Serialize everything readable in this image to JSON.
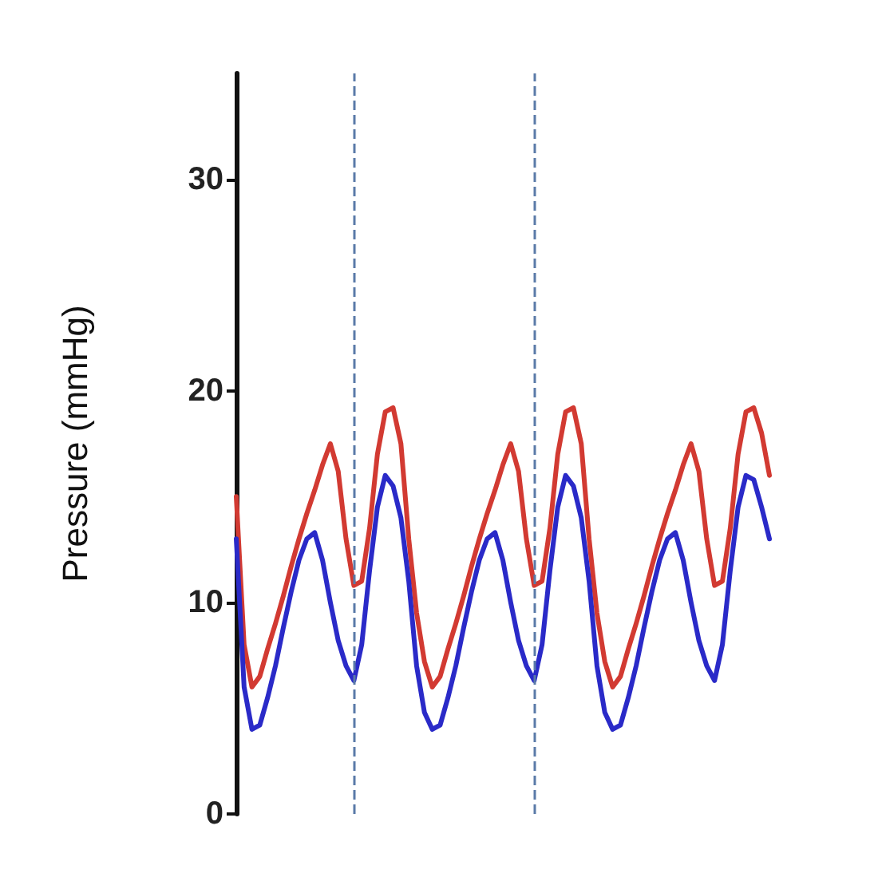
{
  "chart_data": {
    "type": "line",
    "ylabel": "Pressure (mmHg)",
    "categories": [
      null,
      null,
      null,
      null,
      null,
      null,
      null,
      null,
      null,
      null,
      null,
      null,
      null,
      null,
      null,
      null,
      null,
      null,
      null,
      null,
      null,
      null,
      null,
      null,
      null,
      null,
      null,
      null,
      null,
      null,
      null,
      null,
      null,
      null,
      null,
      null,
      null,
      null,
      null,
      null,
      null,
      null,
      null,
      null,
      null,
      null,
      null,
      null,
      null,
      null,
      null,
      null,
      null,
      null,
      null,
      null,
      null,
      null,
      null,
      null,
      null,
      null,
      null,
      null,
      null,
      null,
      null,
      null,
      null
    ],
    "ylim": [
      0,
      35
    ],
    "yticks": [
      0,
      10,
      20,
      30
    ],
    "tick_labels": "y",
    "line_style": "solid",
    "series": [
      {
        "color": "#d23a32",
        "values": [
          15,
          8,
          6,
          6.5,
          7.8,
          9,
          10.3,
          11.7,
          13,
          14.2,
          15.3,
          16.5,
          17.5,
          16.2,
          13,
          10.8,
          11,
          13.5,
          17,
          19,
          19.2,
          17.5,
          13,
          9.5,
          7.2,
          6,
          6.5,
          7.8,
          9,
          10.3,
          11.7,
          13,
          14.2,
          15.3,
          16.5,
          17.5,
          16.2,
          13,
          10.8,
          11,
          13.5,
          17,
          19,
          19.2,
          17.5,
          13,
          9.5,
          7.2,
          6,
          6.5,
          7.8,
          9,
          10.3,
          11.7,
          13,
          14.2,
          15.3,
          16.5,
          17.5,
          16.2,
          13,
          10.8,
          11,
          13.5,
          17,
          19,
          19.2,
          18,
          16
        ]
      },
      {
        "color": "#2a2ac8",
        "values": [
          13,
          6,
          4,
          4.2,
          5.5,
          7,
          8.8,
          10.5,
          12,
          13,
          13.3,
          12,
          10,
          8.2,
          7,
          6.3,
          8,
          11.5,
          14.5,
          16,
          15.5,
          14,
          11,
          7,
          4.8,
          4,
          4.2,
          5.5,
          7,
          8.8,
          10.5,
          12,
          13,
          13.3,
          12,
          10,
          8.2,
          7,
          6.3,
          8,
          11.5,
          14.5,
          16,
          15.5,
          14,
          11,
          7,
          4.8,
          4,
          4.2,
          5.5,
          7,
          8.8,
          10.5,
          12,
          13,
          13.3,
          12,
          10,
          8.2,
          7,
          6.3,
          8,
          11.5,
          14.5,
          16,
          15.8,
          14.5,
          13
        ]
      }
    ]
  }
}
